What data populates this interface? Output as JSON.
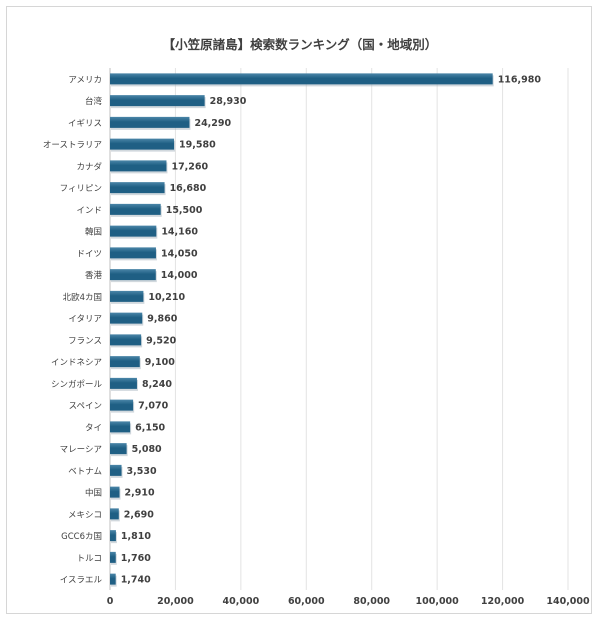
{
  "chart_data": {
    "type": "bar",
    "orientation": "horizontal",
    "title": "【小笠原諸島】検索数ランキング（国・地域別）",
    "categories": [
      "アメリカ",
      "台湾",
      "イギリス",
      "オーストラリア",
      "カナダ",
      "フィリピン",
      "インド",
      "韓国",
      "ドイツ",
      "香港",
      "北欧4カ国",
      "イタリア",
      "フランス",
      "インドネシア",
      "シンガポール",
      "スペイン",
      "タイ",
      "マレーシア",
      "ベトナム",
      "中国",
      "メキシコ",
      "GCC6カ国",
      "トルコ",
      "イスラエル"
    ],
    "values": [
      116980,
      28930,
      24290,
      19580,
      17260,
      16680,
      15500,
      14160,
      14050,
      14000,
      10210,
      9860,
      9520,
      9100,
      8240,
      7070,
      6150,
      5080,
      3530,
      2910,
      2690,
      1810,
      1760,
      1740
    ],
    "value_labels": [
      "116,980",
      "28,930",
      "24,290",
      "19,580",
      "17,260",
      "16,680",
      "15,500",
      "14,160",
      "14,050",
      "14,000",
      "10,210",
      "9,860",
      "9,520",
      "9,100",
      "8,240",
      "7,070",
      "6,150",
      "5,080",
      "3,530",
      "2,910",
      "2,690",
      "1,810",
      "1,760",
      "1,740"
    ],
    "xlim": [
      0,
      140000
    ],
    "x_ticks": [
      0,
      20000,
      40000,
      60000,
      80000,
      100000,
      120000,
      140000
    ],
    "x_tick_labels": [
      "0",
      "20,000",
      "40,000",
      "60,000",
      "80,000",
      "100,000",
      "120,000",
      "140,000"
    ],
    "grid": true,
    "bar_color": "#1f5f84",
    "bar_highlight": "#4b86a8",
    "grid_color": "#e3e3e3",
    "text_color": "#404040"
  }
}
